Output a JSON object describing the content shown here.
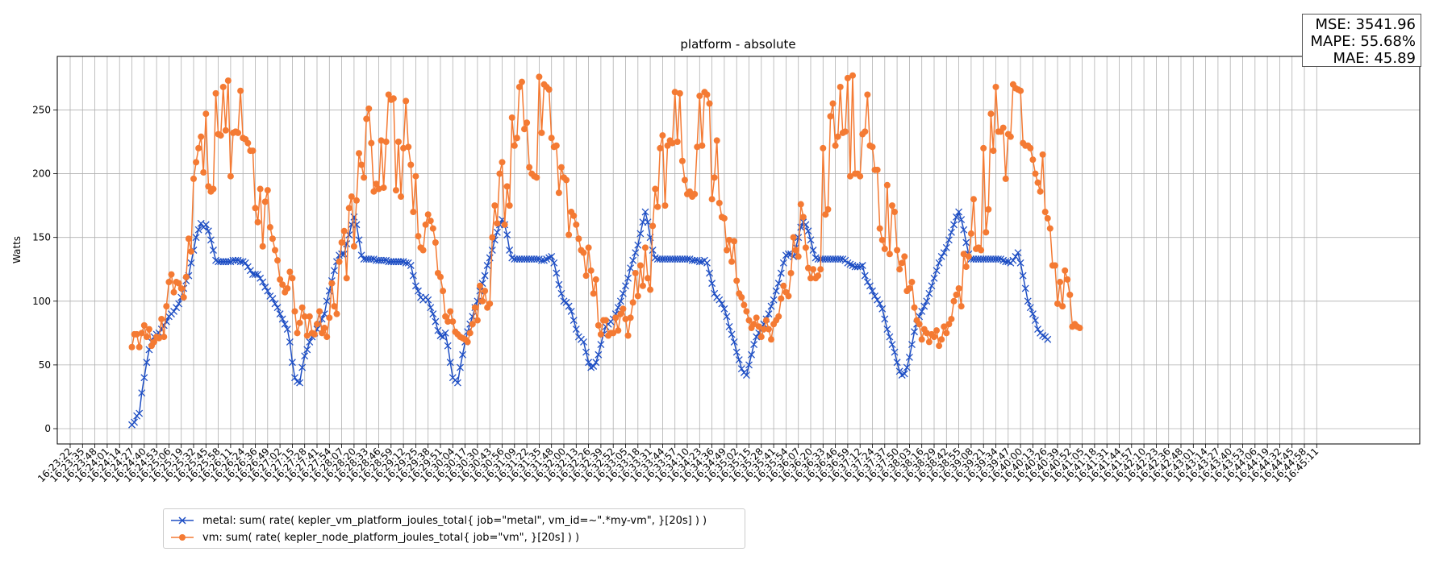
{
  "chart_data": {
    "type": "line",
    "title": "platform - absolute",
    "ylabel": "Watts",
    "xlabel": "",
    "ylim": [
      -12,
      292
    ],
    "yticks": [
      0,
      50,
      100,
      150,
      200,
      250
    ],
    "grid": true,
    "legend_position": "bottom-left",
    "x_tick_labels": [
      "16:23:22",
      "16:23:35",
      "16:23:48",
      "16:24:01",
      "16:24:14",
      "16:24:27",
      "16:24:40",
      "16:24:53",
      "16:25:06",
      "16:25:19",
      "16:25:32",
      "16:25:45",
      "16:25:58",
      "16:26:11",
      "16:26:24",
      "16:26:36",
      "16:26:49",
      "16:27:02",
      "16:27:15",
      "16:27:28",
      "16:27:41",
      "16:27:54",
      "16:28:07",
      "16:28:20",
      "16:28:33",
      "16:28:46",
      "16:28:59",
      "16:29:12",
      "16:29:25",
      "16:29:38",
      "16:29:51",
      "16:30:04",
      "16:30:17",
      "16:30:30",
      "16:30:43",
      "16:30:56",
      "16:31:09",
      "16:31:22",
      "16:31:35",
      "16:31:48",
      "16:32:00",
      "16:32:13",
      "16:32:26",
      "16:32:39",
      "16:32:52",
      "16:33:05",
      "16:33:18",
      "16:33:31",
      "16:33:44",
      "16:33:57",
      "16:34:10",
      "16:34:23",
      "16:34:36",
      "16:34:49",
      "16:35:02",
      "16:35:15",
      "16:35:28",
      "16:35:41",
      "16:35:54",
      "16:36:07",
      "16:36:20",
      "16:36:33",
      "16:36:46",
      "16:36:59",
      "16:37:12",
      "16:37:24",
      "16:37:37",
      "16:37:50",
      "16:38:03",
      "16:38:16",
      "16:38:29",
      "16:38:42",
      "16:38:55",
      "16:39:08",
      "16:39:21",
      "16:39:34",
      "16:39:47",
      "16:40:00",
      "16:40:13",
      "16:40:26",
      "16:40:39",
      "16:40:52",
      "16:41:05",
      "16:41:18",
      "16:41:31",
      "16:41:44",
      "16:41:57",
      "16:42:10",
      "16:42:23",
      "16:42:36",
      "16:42:48",
      "16:43:01",
      "16:43:14",
      "16:43:27",
      "16:43:40",
      "16:43:53",
      "16:44:06",
      "16:44:19",
      "16:44:32",
      "16:44:45",
      "16:44:58",
      "16:45:11"
    ],
    "series": [
      {
        "name": "metal: sum( rate( kepler_vm_platform_joules_total{ job=\"metal\", vm_id=~\".*my-vm\", }[20s] ) )",
        "color": "#1f4fc4",
        "marker": "x",
        "x_start_tick": 5.0,
        "x_step_ticks": 0.2,
        "values": [
          3,
          5,
          10,
          12,
          28,
          40,
          52,
          62,
          68,
          72,
          74,
          75,
          78,
          81,
          84,
          88,
          90,
          92,
          95,
          98,
          103,
          110,
          116,
          120,
          130,
          140,
          150,
          156,
          161,
          158,
          160,
          155,
          148,
          140,
          132,
          131,
          131,
          131,
          131,
          131,
          131,
          132,
          132,
          132,
          131,
          131,
          130,
          127,
          124,
          121,
          121,
          121,
          118,
          115,
          111,
          108,
          104,
          102,
          98,
          95,
          90,
          86,
          82,
          78,
          68,
          52,
          40,
          37,
          36,
          48,
          57,
          62,
          68,
          72,
          75,
          78,
          82,
          86,
          90,
          100,
          108,
          116,
          124,
          131,
          136,
          137,
          137,
          145,
          152,
          160,
          166,
          160,
          148,
          136,
          133,
          133,
          133,
          133,
          133,
          132,
          132,
          132,
          132,
          132,
          131,
          131,
          131,
          131,
          131,
          131,
          131,
          130,
          130,
          128,
          120,
          112,
          108,
          103,
          101,
          103,
          101,
          95,
          90,
          84,
          77,
          73,
          72,
          75,
          65,
          52,
          40,
          38,
          36,
          48,
          58,
          68,
          76,
          82,
          88,
          95,
          100,
          108,
          114,
          120,
          128,
          134,
          140,
          148,
          154,
          160,
          164,
          160,
          152,
          140,
          134,
          133,
          133,
          133,
          133,
          133,
          133,
          133,
          133,
          133,
          133,
          133,
          132,
          132,
          133,
          134,
          135,
          130,
          122,
          113,
          106,
          100,
          99,
          96,
          92,
          85,
          78,
          72,
          70,
          68,
          60,
          52,
          48,
          49,
          52,
          58,
          66,
          74,
          80,
          82,
          84,
          86,
          90,
          95,
          100,
          106,
          112,
          118,
          126,
          132,
          138,
          144,
          153,
          162,
          170,
          162,
          150,
          140,
          134,
          133,
          133,
          133,
          133,
          133,
          133,
          133,
          133,
          133,
          133,
          133,
          133,
          133,
          133,
          132,
          132,
          132,
          131,
          131,
          132,
          130,
          122,
          114,
          106,
          103,
          101,
          98,
          94,
          88,
          80,
          74,
          68,
          60,
          54,
          47,
          44,
          42,
          50,
          58,
          66,
          72,
          75,
          78,
          82,
          86,
          90,
          96,
          101,
          108,
          114,
          122,
          130,
          136,
          137,
          137,
          135,
          142,
          150,
          158,
          162,
          160,
          155,
          148,
          140,
          134,
          133,
          133,
          133,
          133,
          133,
          133,
          133,
          133,
          133,
          133,
          133,
          132,
          130,
          129,
          128,
          127,
          127,
          127,
          128,
          120,
          115,
          112,
          108,
          104,
          101,
          98,
          94,
          86,
          78,
          72,
          66,
          60,
          52,
          45,
          42,
          43,
          48,
          56,
          66,
          76,
          82,
          88,
          92,
          96,
          100,
          106,
          112,
          118,
          124,
          130,
          135,
          138,
          142,
          148,
          154,
          160,
          166,
          170,
          164,
          156,
          146,
          137,
          133,
          133,
          133,
          133,
          133,
          133,
          133,
          133,
          133,
          133,
          133,
          133,
          133,
          132,
          131,
          131,
          130,
          132,
          135,
          138,
          130,
          120,
          110,
          100,
          95,
          90,
          85,
          78,
          75,
          73,
          72,
          70
        ]
      },
      {
        "name": "vm: sum( rate( kepler_node_platform_joules_total{ job=\"vm\", }[20s] ) )",
        "color": "#f47a33",
        "marker": "o",
        "x_start_tick": 5.0,
        "x_step_ticks": 0.2,
        "values": [
          64,
          74,
          74,
          64,
          75,
          81,
          72,
          78,
          65,
          68,
          72,
          71,
          86,
          72,
          96,
          115,
          121,
          107,
          115,
          114,
          110,
          103,
          119,
          149,
          139,
          196,
          209,
          220,
          229,
          201,
          247,
          190,
          186,
          188,
          263,
          231,
          230,
          268,
          234,
          273,
          198,
          232,
          233,
          232,
          265,
          228,
          227,
          224,
          218,
          218,
          173,
          162,
          188,
          143,
          178,
          187,
          158,
          149,
          140,
          132,
          117,
          113,
          107,
          110,
          123,
          118,
          92,
          75,
          83,
          95,
          88,
          73,
          88,
          75,
          74,
          82,
          92,
          75,
          79,
          72,
          87,
          114,
          96,
          90,
          131,
          146,
          155,
          118,
          173,
          182,
          143,
          179,
          216,
          207,
          197,
          243,
          251,
          224,
          186,
          192,
          188,
          226,
          189,
          225,
          262,
          258,
          259,
          187,
          225,
          182,
          220,
          257,
          221,
          207,
          170,
          198,
          151,
          142,
          140,
          160,
          168,
          163,
          157,
          146,
          122,
          119,
          108,
          88,
          84,
          92,
          84,
          76,
          74,
          72,
          71,
          70,
          68,
          75,
          82,
          95,
          85,
          112,
          100,
          108,
          95,
          98,
          150,
          175,
          161,
          200,
          209,
          160,
          190,
          175,
          244,
          222,
          228,
          268,
          272,
          235,
          240,
          205,
          200,
          198,
          197,
          276,
          232,
          270,
          268,
          266,
          228,
          221,
          222,
          185,
          205,
          197,
          195,
          152,
          170,
          167,
          160,
          149,
          140,
          138,
          120,
          142,
          124,
          106,
          117,
          81,
          74,
          85,
          85,
          73,
          75,
          75,
          87,
          77,
          90,
          94,
          86,
          73,
          87,
          99,
          122,
          104,
          128,
          112,
          142,
          118,
          109,
          159,
          188,
          174,
          220,
          230,
          175,
          222,
          226,
          224,
          264,
          225,
          263,
          210,
          195,
          184,
          186,
          182,
          184,
          221,
          261,
          222,
          264,
          262,
          255,
          180,
          197,
          226,
          177,
          166,
          165,
          140,
          148,
          131,
          147,
          116,
          106,
          103,
          97,
          92,
          85,
          79,
          82,
          87,
          80,
          72,
          78,
          85,
          78,
          70,
          82,
          85,
          88,
          102,
          112,
          107,
          104,
          122,
          150,
          140,
          135,
          176,
          166,
          142,
          126,
          118,
          125,
          118,
          120,
          125,
          220,
          168,
          172,
          245,
          255,
          222,
          229,
          268,
          232,
          233,
          275,
          198,
          277,
          200,
          200,
          198,
          231,
          233,
          262,
          222,
          221,
          203,
          203,
          157,
          148,
          141,
          191,
          137,
          175,
          170,
          140,
          125,
          130,
          135,
          108,
          110,
          115,
          95,
          85,
          82,
          70,
          78,
          75,
          68,
          74,
          72,
          77,
          65,
          70,
          80,
          75,
          82,
          86,
          100,
          105,
          110,
          96,
          137,
          127,
          135,
          153,
          180,
          141,
          142,
          140,
          220,
          154,
          172,
          247,
          218,
          268,
          233,
          233,
          236,
          196,
          231,
          229,
          270,
          267,
          266,
          265,
          224,
          222,
          222,
          220,
          211,
          200,
          193,
          186,
          215,
          170,
          165,
          157,
          128,
          128,
          98,
          115,
          96,
          124,
          117,
          105,
          80,
          82,
          80,
          79
        ]
      }
    ]
  },
  "metrics": {
    "mse": "MSE: 3541.96",
    "mape": "MAPE: 55.68%",
    "mae": "MAE: 45.89"
  }
}
